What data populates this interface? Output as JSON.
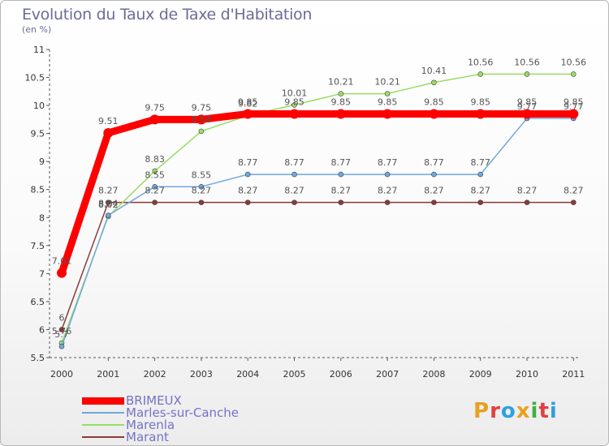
{
  "title": "Evolution du Taux de Taxe d'Habitation",
  "subtitle": "(en %)",
  "logo": {
    "text": "Proxiti",
    "colors": [
      "#e8a020",
      "#e04040",
      "#30a0e0",
      "#e8a020",
      "#40b040",
      "#e04040",
      "#30a0e0"
    ]
  },
  "chart_data": {
    "type": "line",
    "x": [
      "2000",
      "2001",
      "2002",
      "2003",
      "2004",
      "2005",
      "2006",
      "2007",
      "2008",
      "2009",
      "2010",
      "2011"
    ],
    "ylim": [
      5.5,
      11
    ],
    "yticks": [
      "5.5",
      "6",
      "6.5",
      "7",
      "7.5",
      "8",
      "8.5",
      "9",
      "9.5",
      "10",
      "10.5",
      "11"
    ],
    "grid": false,
    "legend_position": "bottom-left",
    "series": [
      {
        "name": "BRIMEUX",
        "color": "#ff0000",
        "values": [
          7.01,
          9.51,
          9.75,
          9.75,
          9.85,
          9.85,
          9.85,
          9.85,
          9.85,
          9.85,
          9.85,
          9.85
        ],
        "labels": [
          "7.01",
          "9.51",
          "9.75",
          "9.75",
          "9.85",
          "9.85",
          "9.85",
          "9.85",
          "9.85",
          "9.85",
          "9.85",
          "9.85"
        ]
      },
      {
        "name": "Marles-sur-Canche",
        "color": "#6fa8dc",
        "values": [
          5.7,
          8.04,
          8.55,
          8.55,
          8.77,
          8.77,
          8.77,
          8.77,
          8.77,
          8.77,
          9.77,
          9.77
        ],
        "labels": [
          "5.7",
          "8.04",
          "8.55",
          "8.55",
          "8.77",
          "8.77",
          "8.77",
          "8.77",
          "8.77",
          "8.77",
          "9.77",
          "9.77"
        ]
      },
      {
        "name": "Marenla",
        "color": "#99dd66",
        "values": [
          5.76,
          8.02,
          8.83,
          9.54,
          9.82,
          10.01,
          10.21,
          10.21,
          10.41,
          10.56,
          10.56,
          10.56
        ],
        "labels": [
          "5.76",
          "8.02",
          "8.83",
          "9.54",
          "9.82",
          "10.01",
          "10.21",
          "10.21",
          "10.41",
          "10.56",
          "10.56",
          "10.56"
        ]
      },
      {
        "name": "Marant",
        "color": "#8b3a3a",
        "values": [
          6,
          8.27,
          8.27,
          8.27,
          8.27,
          8.27,
          8.27,
          8.27,
          8.27,
          8.27,
          8.27,
          8.27
        ],
        "labels": [
          "6",
          "8.27",
          "8.27",
          "8.27",
          "8.27",
          "8.27",
          "8.27",
          "8.27",
          "8.27",
          "8.27",
          "8.27",
          "8.27"
        ]
      }
    ]
  }
}
